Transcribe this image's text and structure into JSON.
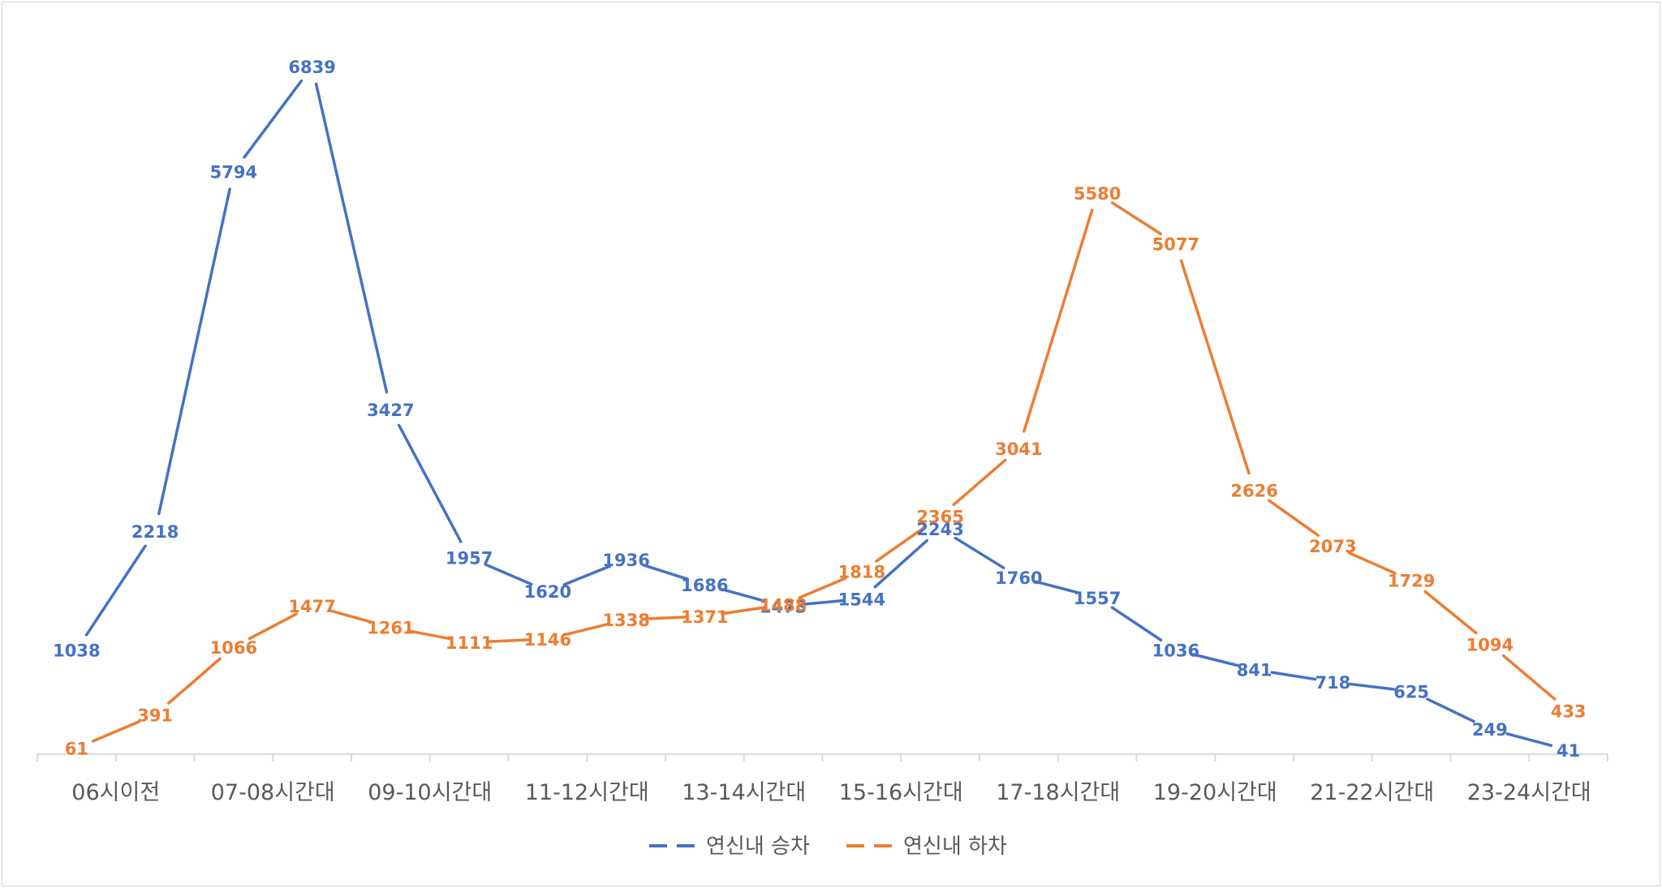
{
  "chart_data": {
    "type": "line",
    "title": "",
    "xlabel": "",
    "ylabel": "",
    "ylim": [
      0,
      7500
    ],
    "grid": false,
    "legend_position": "bottom",
    "categories": [
      "06시이전",
      "07-08시간대",
      "09-10시간대",
      "11-12시간대",
      "13-14시간대",
      "15-16시간대",
      "17-18시간대",
      "19-20시간대",
      "21-22시간대",
      "23-24시간대"
    ],
    "x": [
      "06시이전",
      "",
      "07-08시간대",
      "",
      "09-10시간대",
      "",
      "11-12시간대",
      "",
      "13-14시간대",
      "",
      "15-16시간대",
      "",
      "17-18시간대",
      "",
      "19-20시간대",
      "",
      "21-22시간대",
      "",
      "23-24시간대",
      ""
    ],
    "series": [
      {
        "name": "연신내 승차",
        "color": "#4472C4",
        "values": [
          1038,
          2218,
          5794,
          6839,
          3427,
          1957,
          1620,
          1936,
          1686,
          1473,
          1544,
          2243,
          1760,
          1557,
          1036,
          841,
          718,
          625,
          249,
          41
        ]
      },
      {
        "name": "연신내 하차",
        "color": "#ED7D31",
        "values": [
          61,
          391,
          1066,
          1477,
          1261,
          1111,
          1146,
          1338,
          1371,
          1488,
          1818,
          2365,
          3041,
          5580,
          5077,
          2626,
          2073,
          1729,
          1094,
          433
        ]
      }
    ]
  }
}
